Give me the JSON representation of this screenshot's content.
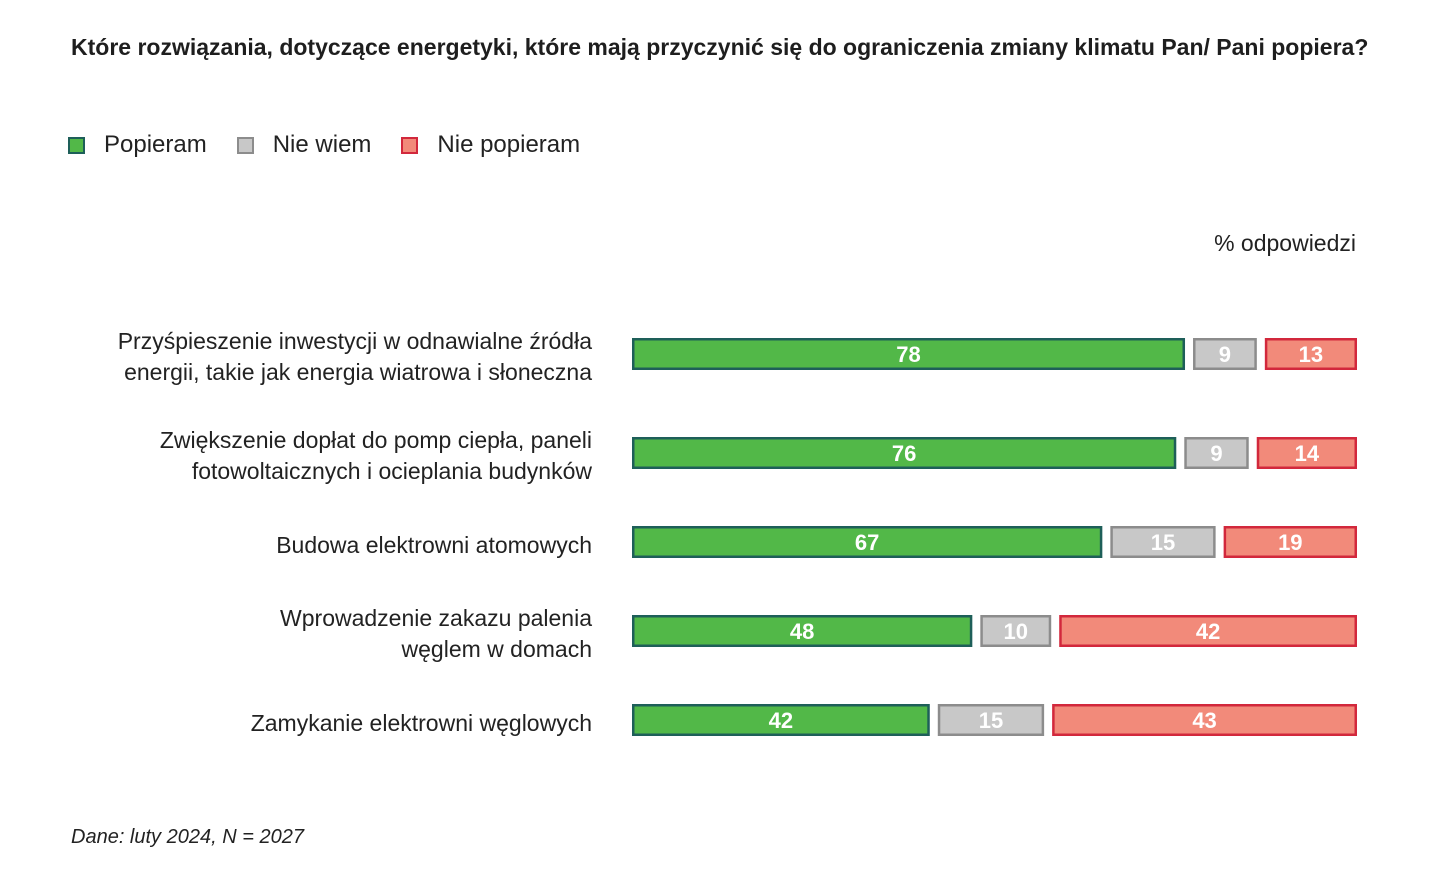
{
  "colors": {
    "popieram_fill": "#52b848",
    "popieram_border": "#1e5f59",
    "niewiem_fill": "#c8c8c8",
    "niewiem_border": "#8c8c8c",
    "niepopieram_fill": "#f28a7a",
    "niepopieram_border": "#d2283c"
  },
  "chart_data": {
    "type": "bar",
    "orientation": "horizontal",
    "stacked": true,
    "title": "Które rozwiązania, dotyczące energetyki, które mają przyczynić się do ograniczenia zmiany klimatu Pan/ Pani popiera?",
    "unit_label": "% odpowiedzi",
    "legend": [
      "Popieram",
      "Nie wiem",
      "Nie popieram"
    ],
    "legend_position": "top-left",
    "categories": [
      [
        "Przyśpieszenie inwestycji w odnawialne źródła",
        "energii, takie jak energia wiatrowa i słoneczna"
      ],
      [
        "Zwiększenie dopłat do pomp ciepła, paneli",
        "fotowoltaicznych i ocieplania budynków"
      ],
      [
        "Budowa elektrowni atomowych"
      ],
      [
        "Wprowadzenie zakazu palenia",
        "węglem w domach"
      ],
      [
        "Zamykanie elektrowni węglowych"
      ]
    ],
    "series": [
      {
        "name": "Popieram",
        "values": [
          78,
          76,
          67,
          48,
          42
        ]
      },
      {
        "name": "Nie wiem",
        "values": [
          9,
          9,
          15,
          10,
          15
        ]
      },
      {
        "name": "Nie popieram",
        "values": [
          13,
          14,
          19,
          42,
          43
        ]
      }
    ],
    "xlim": [
      0,
      100
    ],
    "grid": false,
    "footnote": "Dane: luty 2024, N = 2027"
  }
}
